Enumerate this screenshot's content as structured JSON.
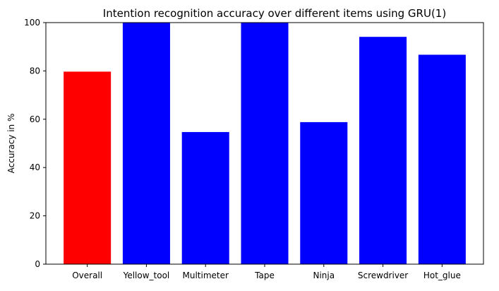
{
  "chart_data": {
    "type": "bar",
    "title": "Intention recognition accuracy over different items using GRU(1)",
    "xlabel": "",
    "ylabel": "Accuracy in %",
    "categories": [
      "Overall",
      "Yellow_tool",
      "Multimeter",
      "Tape",
      "Ninja",
      "Screwdriver",
      "Hot_glue"
    ],
    "values": [
      79.7,
      100,
      54.7,
      100,
      58.8,
      94.1,
      86.7
    ],
    "bar_colors": [
      "#ff0000",
      "#0000ff",
      "#0000ff",
      "#0000ff",
      "#0000ff",
      "#0000ff",
      "#0000ff"
    ],
    "ylim": [
      0,
      100
    ],
    "yticks": [
      0,
      20,
      40,
      60,
      80,
      100
    ],
    "grid": false,
    "legend": "none"
  }
}
